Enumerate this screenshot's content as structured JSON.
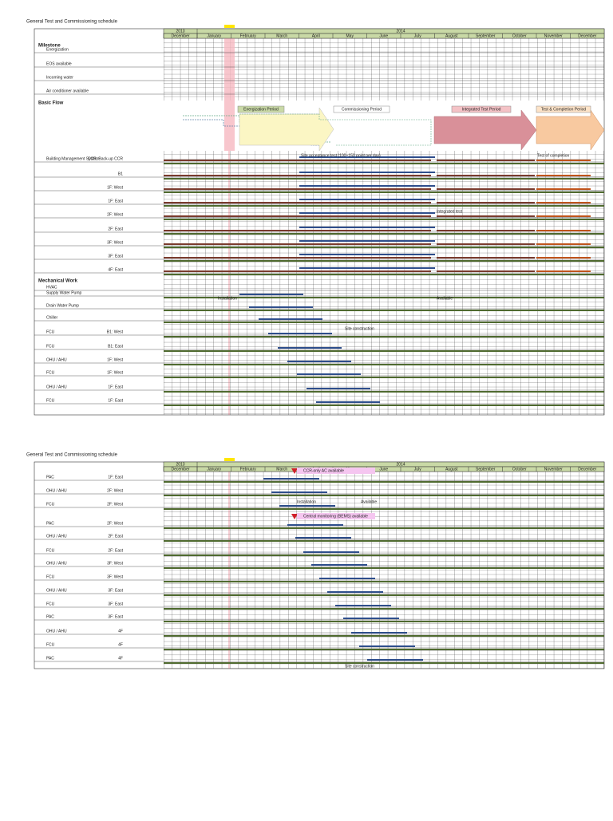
{
  "pages": [
    {
      "title": "General Test and Commissioning schedule",
      "years": [
        "2013",
        "2014"
      ],
      "months": [
        "December",
        "January",
        "February",
        "March",
        "April",
        "May",
        "June",
        "July",
        "August",
        "September",
        "October",
        "November",
        "December"
      ],
      "sections": [
        "Milestone",
        "Basic Flow",
        "Mechanical Work"
      ],
      "rows": [
        {
          "label": "Energization",
          "sub": ""
        },
        {
          "label": "EOS available",
          "sub": ""
        },
        {
          "label": "Incoming water",
          "sub": ""
        },
        {
          "label": "Air conditioner available",
          "sub": ""
        },
        {
          "label": "Building Management System",
          "sub": "CCR, Back-up CCR"
        },
        {
          "label": "",
          "sub": "B1"
        },
        {
          "label": "",
          "sub": "1F: West"
        },
        {
          "label": "",
          "sub": "1F: East"
        },
        {
          "label": "",
          "sub": "2F: West"
        },
        {
          "label": "",
          "sub": "2F: East"
        },
        {
          "label": "",
          "sub": "3F: West"
        },
        {
          "label": "",
          "sub": "3F: East"
        },
        {
          "label": "",
          "sub": "4F: East"
        },
        {
          "label": "HVAC",
          "sub": ""
        },
        {
          "label": "Supply Water Pump",
          "sub": ""
        },
        {
          "label": "Drain Water Pump",
          "sub": ""
        },
        {
          "label": "Chiller",
          "sub": ""
        },
        {
          "label": "FCU",
          "sub": "B1: West"
        },
        {
          "label": "FCU",
          "sub": "B1: East"
        },
        {
          "label": "OHU / AHU",
          "sub": "1F: West"
        },
        {
          "label": "FCU",
          "sub": "1F: West"
        },
        {
          "label": "OHU / AHU",
          "sub": "1F: East"
        },
        {
          "label": "FCU",
          "sub": "1F: East"
        }
      ],
      "phases": [
        "Energization Period",
        "Commissioning Period",
        "Integrated Test Period",
        "Test & Completion Period"
      ],
      "notes": [
        "Site acceptance test (100~150 point per day)",
        "Integrated test",
        "Test of completion",
        "Installation",
        "Available",
        "Site construction"
      ]
    },
    {
      "title": "General Test and Commissioning schedule",
      "years": [
        "2013",
        "2014"
      ],
      "months": [
        "December",
        "January",
        "February",
        "March",
        "April",
        "May",
        "June",
        "July",
        "August",
        "September",
        "October",
        "November",
        "December"
      ],
      "rows": [
        {
          "label": "PAC",
          "sub": "1F: East"
        },
        {
          "label": "OHU / AHU",
          "sub": "2F: West"
        },
        {
          "label": "FCU",
          "sub": "2F: West"
        },
        {
          "label": "PAC",
          "sub": "2F: West"
        },
        {
          "label": "OHU / AHU",
          "sub": "2F: East"
        },
        {
          "label": "FCU",
          "sub": "2F: East"
        },
        {
          "label": "OHU / AHU",
          "sub": "3F: West"
        },
        {
          "label": "FCU",
          "sub": "3F: West"
        },
        {
          "label": "OHU / AHU",
          "sub": "3F: East"
        },
        {
          "label": "FCU",
          "sub": "3F: East"
        },
        {
          "label": "PAC",
          "sub": "3F: East"
        },
        {
          "label": "OHU / AHU",
          "sub": "4F"
        },
        {
          "label": "FCU",
          "sub": "4F"
        },
        {
          "label": "PAC",
          "sub": "4F"
        }
      ],
      "callouts": [
        "CCR-only AC available",
        "Central monitoring (BEMS) available"
      ],
      "notes": [
        "Installation",
        "Available",
        "Site construction"
      ]
    }
  ]
}
